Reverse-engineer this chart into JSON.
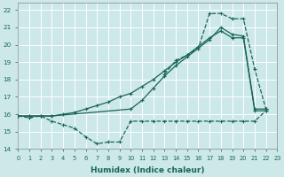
{
  "bg_color": "#cce8e8",
  "grid_color": "#b0d8d8",
  "line_color": "#1a6655",
  "xlim": [
    0,
    23
  ],
  "ylim": [
    14,
    22.4
  ],
  "xlabel": "Humidex (Indice chaleur)",
  "xtick_vals": [
    0,
    1,
    2,
    3,
    4,
    5,
    6,
    7,
    8,
    9,
    10,
    11,
    12,
    13,
    14,
    15,
    16,
    17,
    18,
    19,
    20,
    21,
    22,
    23
  ],
  "ytick_vals": [
    14,
    15,
    16,
    17,
    18,
    19,
    20,
    21,
    22
  ],
  "c1x": [
    0,
    1,
    2,
    3,
    4,
    5,
    6,
    7,
    8,
    9,
    10,
    11,
    12,
    13,
    14,
    15,
    16,
    17,
    18,
    19,
    20,
    21,
    22
  ],
  "c1y": [
    15.9,
    15.8,
    15.9,
    15.6,
    15.4,
    15.2,
    14.7,
    14.3,
    14.4,
    14.4,
    15.6,
    15.6,
    15.6,
    15.6,
    15.6,
    15.6,
    15.6,
    15.6,
    15.6,
    15.6,
    15.6,
    15.6,
    16.2
  ],
  "c2x": [
    0,
    1,
    2,
    3,
    4,
    5,
    6,
    7,
    8,
    9,
    10,
    11,
    12,
    13,
    14,
    15,
    16,
    17,
    18,
    19,
    20,
    21,
    22
  ],
  "c2y": [
    15.9,
    15.9,
    15.9,
    15.9,
    16.0,
    16.1,
    16.3,
    16.5,
    16.7,
    17.0,
    17.2,
    17.6,
    18.0,
    18.5,
    19.0,
    19.4,
    19.9,
    20.4,
    20.8,
    20.4,
    20.4,
    16.2,
    16.2
  ],
  "c3x": [
    0,
    1,
    2,
    3,
    10,
    11,
    12,
    13,
    14,
    15,
    16,
    17,
    18,
    19,
    20,
    21,
    22
  ],
  "c3y": [
    15.9,
    15.9,
    15.9,
    15.9,
    16.3,
    16.8,
    17.5,
    18.2,
    18.8,
    19.3,
    19.8,
    20.3,
    21.0,
    20.6,
    20.5,
    16.3,
    16.3
  ],
  "c4x": [
    13,
    14,
    15,
    16,
    17,
    18,
    19,
    20,
    21,
    22
  ],
  "c4y": [
    18.3,
    19.1,
    19.4,
    19.8,
    21.8,
    21.8,
    21.5,
    21.5,
    18.6,
    16.3
  ]
}
